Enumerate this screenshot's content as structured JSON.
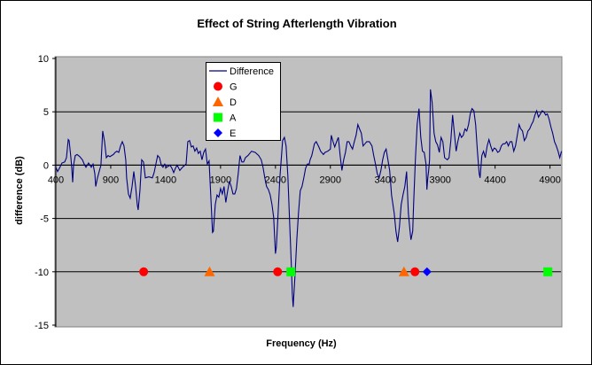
{
  "chart_data": {
    "type": "line",
    "title": "Effect of String Afterlength Vibration",
    "xlabel": "Frequency (Hz)",
    "ylabel": "difference (dB)",
    "xlim": [
      400,
      5000
    ],
    "ylim": [
      -15,
      10
    ],
    "x_ticks": [
      400,
      900,
      1400,
      1900,
      2400,
      2900,
      3400,
      3900,
      4400,
      4900
    ],
    "y_ticks": [
      10,
      5,
      0,
      -5,
      -10,
      -15
    ],
    "grid": "horizontal major gridlines",
    "legend_position": "top-left inside plot",
    "plot_background": "#C0C0C0",
    "series": [
      {
        "name": "Difference",
        "kind": "line",
        "color": "#000080",
        "x": [
          400,
          416,
          432,
          456,
          481,
          497,
          513,
          521,
          537,
          545,
          553,
          561,
          577,
          594,
          618,
          642,
          658,
          674,
          698,
          723,
          739,
          755,
          763,
          779,
          795,
          811,
          827,
          844,
          860,
          876,
          892,
          908,
          924,
          940,
          956,
          973,
          989,
          1005,
          1021,
          1037,
          1045,
          1061,
          1077,
          1094,
          1110,
          1126,
          1142,
          1150,
          1166,
          1182,
          1198,
          1215,
          1247,
          1279,
          1295,
          1311,
          1327,
          1344,
          1360,
          1376,
          1392,
          1408,
          1424,
          1440,
          1457,
          1473,
          1489,
          1505,
          1529,
          1553,
          1586,
          1602,
          1618,
          1634,
          1650,
          1666,
          1682,
          1698,
          1715,
          1731,
          1747,
          1763,
          1779,
          1795,
          1811,
          1827,
          1835,
          1852,
          1868,
          1884,
          1900,
          1916,
          1932,
          1948,
          1965,
          1981,
          1997,
          2013,
          2029,
          2045,
          2061,
          2077,
          2094,
          2110,
          2126,
          2150,
          2182,
          2215,
          2247,
          2271,
          2287,
          2303,
          2319,
          2336,
          2352,
          2368,
          2384,
          2400,
          2408,
          2424,
          2440,
          2465,
          2481,
          2497,
          2513,
          2529,
          2545,
          2553,
          2561,
          2578,
          2594,
          2610,
          2626,
          2642,
          2658,
          2674,
          2690,
          2707,
          2715,
          2731,
          2755,
          2771,
          2795,
          2811,
          2836,
          2852,
          2876,
          2900,
          2908,
          2924,
          2940,
          2957,
          2973,
          2989,
          3005,
          3021,
          3037,
          3053,
          3069,
          3086,
          3102,
          3118,
          3134,
          3150,
          3166,
          3182,
          3198,
          3215,
          3231,
          3255,
          3279,
          3295,
          3311,
          3327,
          3344,
          3360,
          3376,
          3392,
          3408,
          3440,
          3457,
          3481,
          3497,
          3513,
          3529,
          3545,
          3561,
          3578,
          3594,
          3610,
          3626,
          3634,
          3650,
          3658,
          3674,
          3690,
          3707,
          3723,
          3739,
          3755,
          3771,
          3779,
          3787,
          3795,
          3803,
          3811,
          3827,
          3844,
          3860,
          3876,
          3892,
          3908,
          3924,
          3940,
          3965,
          3981,
          3997,
          4013,
          4029,
          4045,
          4061,
          4078,
          4094,
          4110,
          4126,
          4142,
          4158,
          4174,
          4190,
          4207,
          4223,
          4239,
          4255,
          4263,
          4279,
          4295,
          4311,
          4328,
          4344,
          4360,
          4376,
          4392,
          4408,
          4424,
          4440,
          4457,
          4473,
          4489,
          4505,
          4521,
          4537,
          4553,
          4570,
          4586,
          4602,
          4618,
          4634,
          4650,
          4666,
          4683,
          4699,
          4715,
          4731,
          4747,
          4763,
          4779,
          4795,
          4812,
          4828,
          4844,
          4860,
          4876,
          4892,
          4908,
          4924,
          4941,
          4957,
          4973,
          4989,
          5005
        ],
        "y": [
          -0.2,
          -0.6,
          -0.3,
          0.2,
          0.3,
          0.7,
          2.4,
          2.3,
          0.7,
          -0.3,
          -1.6,
          0,
          0.9,
          1.0,
          0.8,
          0.5,
          0.1,
          -0.2,
          0.2,
          -0.2,
          0.1,
          -0.8,
          -2.0,
          -1.2,
          -0.6,
          0,
          3.2,
          2.2,
          0.7,
          0.9,
          0.8,
          0.9,
          1.0,
          1.2,
          1.3,
          1.2,
          1.8,
          2.2,
          1.8,
          0.5,
          -1.2,
          -2.7,
          -3.1,
          -2.0,
          -0.6,
          -2.0,
          -3.7,
          -4.2,
          -2.4,
          0.5,
          0.3,
          -1.2,
          -1.1,
          -1.2,
          -0.7,
          0.1,
          0.9,
          0.7,
          0,
          -0.2,
          0.1,
          -0.2,
          -0.1,
          0,
          -0.3,
          -0.7,
          -0.3,
          0,
          -0.5,
          -0.2,
          0.1,
          2.2,
          2.3,
          1.7,
          1.8,
          1.3,
          1.6,
          1.1,
          1.3,
          0.5,
          1.2,
          1.5,
          0.1,
          0.4,
          -2.8,
          -6.3,
          -6.2,
          -3.7,
          -2.8,
          -3.0,
          -2.2,
          -2.7,
          -2.0,
          -3.5,
          -2.4,
          -1.5,
          -2.0,
          -2.7,
          -2.7,
          -2.2,
          -0.8,
          0.9,
          0.3,
          0.3,
          0.7,
          0.9,
          1.3,
          1.2,
          0.9,
          0.5,
          -0.2,
          -1.2,
          -2.0,
          -2.3,
          -2.8,
          -3.7,
          -4.9,
          -8.3,
          -7.7,
          -4.5,
          -1.2,
          2.3,
          2.6,
          1.8,
          -1.0,
          -5.3,
          -9.5,
          -12.0,
          -13.3,
          -10.3,
          -7.0,
          -4.5,
          -2.4,
          -2.0,
          -1.2,
          -0.3,
          0.1,
          0.1,
          0.5,
          0.9,
          2.0,
          2.2,
          1.7,
          1.3,
          1.0,
          1.2,
          1.3,
          1.5,
          2.8,
          2.2,
          1.7,
          2.2,
          2.6,
          0.9,
          -0.5,
          0.5,
          1.2,
          2.2,
          2.2,
          1.8,
          1.5,
          2.2,
          2.8,
          3.8,
          3.4,
          3.0,
          1.8,
          2.0,
          2.2,
          2.2,
          1.8,
          0.9,
          0.1,
          -0.8,
          -1.2,
          -0.5,
          0.5,
          1.2,
          1.5,
          -0.5,
          -2.8,
          -4.5,
          -6.2,
          -7.2,
          -5.8,
          -3.7,
          -2.8,
          -2.0,
          -0.6,
          -4.5,
          -6.2,
          -7.0,
          -6.2,
          -3.7,
          0.5,
          3.8,
          5.3,
          2.6,
          1.3,
          1.2,
          0.1,
          -2.3,
          -1.2,
          -0.5,
          0.5,
          7.1,
          5.9,
          3.0,
          2.2,
          1.9,
          1.2,
          2.6,
          2.2,
          0.7,
          0.5,
          0.7,
          2.3,
          4.7,
          3.0,
          1.3,
          2.2,
          3.0,
          2.6,
          2.8,
          3.4,
          3.2,
          3.8,
          4.8,
          5.3,
          5.1,
          3.8,
          1.3,
          -0.8,
          -1.2,
          0.9,
          1.3,
          0.7,
          1.8,
          2.4,
          1.8,
          1.3,
          1.6,
          1.5,
          1.2,
          1.3,
          1.8,
          2.0,
          2.0,
          2.2,
          1.8,
          2.2,
          2.2,
          1.3,
          1.8,
          2.8,
          3.8,
          3.4,
          3.2,
          2.3,
          2.6,
          3.2,
          3.4,
          3.8,
          4.1,
          4.7,
          5.1,
          4.5,
          4.8,
          5.1,
          5.0,
          4.7,
          4.8,
          4.3,
          3.6,
          3.0,
          2.2,
          1.8,
          1.3,
          0.7,
          1.3
        ]
      },
      {
        "name": "G",
        "kind": "marker",
        "marker": "circle",
        "color": "#FF0000",
        "x": [
          1200,
          2420,
          3670
        ],
        "y": [
          -10,
          -10,
          -10
        ]
      },
      {
        "name": "D",
        "kind": "marker",
        "marker": "triangle",
        "color": "#FF6600",
        "x": [
          1800,
          3570
        ],
        "y": [
          -10,
          -10
        ]
      },
      {
        "name": "A",
        "kind": "marker",
        "marker": "square",
        "color": "#00FF00",
        "x": [
          2540,
          4880
        ],
        "y": [
          -10,
          -10
        ]
      },
      {
        "name": "E",
        "kind": "marker",
        "marker": "diamond",
        "color": "#0000FF",
        "x": [
          3780
        ],
        "y": [
          -10
        ]
      }
    ]
  }
}
